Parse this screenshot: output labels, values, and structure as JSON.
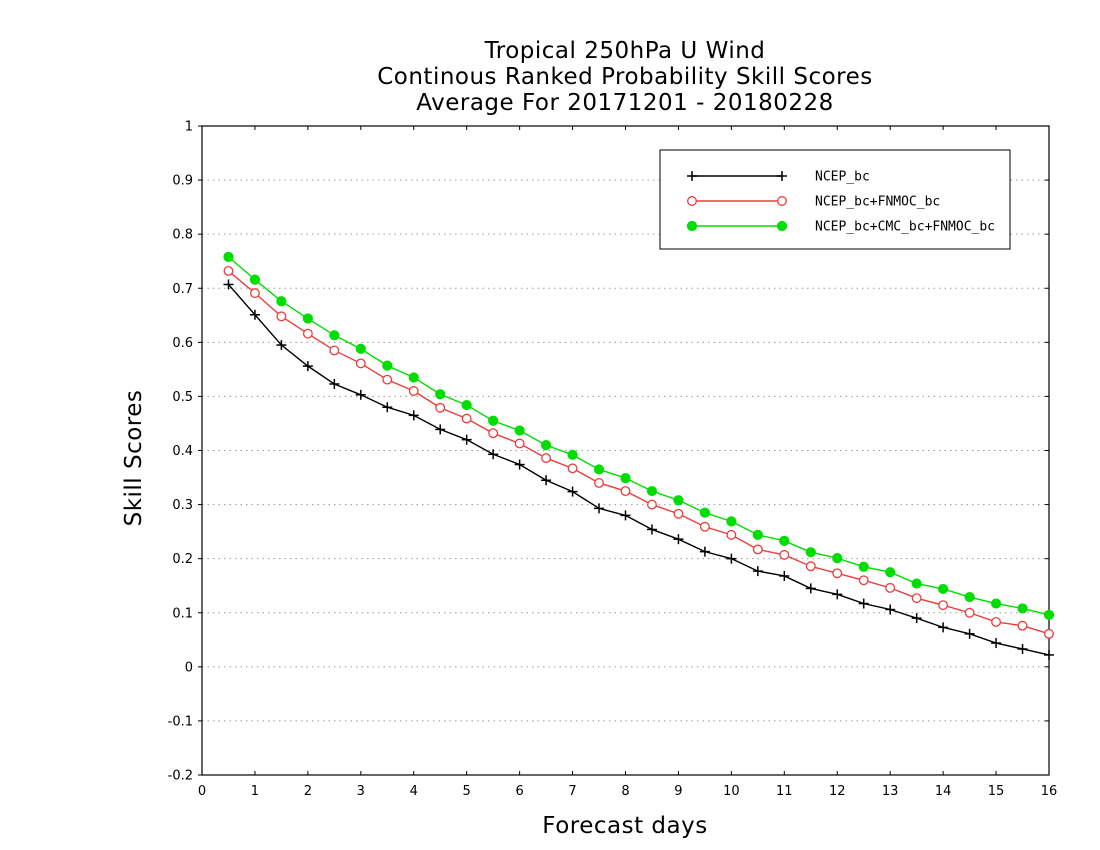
{
  "chart_data": {
    "type": "line",
    "title": [
      "Tropical 250hPa U Wind",
      "Continous Ranked Probability Skill Scores",
      "Average For 20171201 - 20180228"
    ],
    "xlabel": "Forecast days",
    "ylabel": "Skill Scores",
    "xlim": [
      0,
      16
    ],
    "ylim": [
      -0.2,
      1
    ],
    "xticks": [
      "0",
      "1",
      "2",
      "3",
      "4",
      "5",
      "6",
      "7",
      "8",
      "9",
      "10",
      "11",
      "12",
      "13",
      "14",
      "15",
      "16"
    ],
    "yticks": [
      "-0.2",
      "-0.1",
      "0",
      "0.1",
      "0.2",
      "0.3",
      "0.4",
      "0.5",
      "0.6",
      "0.7",
      "0.8",
      "0.9",
      "1"
    ],
    "grid": "horizontal dotted",
    "legend_position": "top-right",
    "x": [
      0.5,
      1,
      1.5,
      2,
      2.5,
      3,
      3.5,
      4,
      4.5,
      5,
      5.5,
      6,
      6.5,
      7,
      7.5,
      8,
      8.5,
      9,
      9.5,
      10,
      10.5,
      11,
      11.5,
      12,
      12.5,
      13,
      13.5,
      14,
      14.5,
      15,
      15.5,
      16
    ],
    "series": [
      {
        "name": "NCEP_bc",
        "color": "#000000",
        "marker": "plus",
        "values": [
          0.707,
          0.651,
          0.595,
          0.556,
          0.523,
          0.503,
          0.48,
          0.465,
          0.439,
          0.42,
          0.393,
          0.374,
          0.345,
          0.324,
          0.293,
          0.28,
          0.254,
          0.236,
          0.213,
          0.2,
          0.177,
          0.168,
          0.145,
          0.134,
          0.117,
          0.106,
          0.09,
          0.073,
          0.061,
          0.044,
          0.033,
          0.022
        ]
      },
      {
        "name": "NCEP_bc+FNMOC_bc",
        "color": "#ee3b3b",
        "marker": "open-circle",
        "values": [
          0.732,
          0.691,
          0.648,
          0.616,
          0.585,
          0.561,
          0.531,
          0.51,
          0.479,
          0.459,
          0.432,
          0.413,
          0.386,
          0.367,
          0.34,
          0.325,
          0.3,
          0.283,
          0.259,
          0.244,
          0.217,
          0.207,
          0.186,
          0.173,
          0.16,
          0.146,
          0.127,
          0.114,
          0.1,
          0.083,
          0.076,
          0.061
        ]
      },
      {
        "name": "NCEP_bc+CMC_bc+FNMOC_bc",
        "color": "#00dd00",
        "marker": "filled-circle",
        "values": [
          0.758,
          0.716,
          0.676,
          0.644,
          0.613,
          0.588,
          0.557,
          0.535,
          0.504,
          0.484,
          0.455,
          0.437,
          0.41,
          0.392,
          0.365,
          0.349,
          0.325,
          0.308,
          0.285,
          0.269,
          0.244,
          0.233,
          0.212,
          0.201,
          0.185,
          0.175,
          0.154,
          0.144,
          0.129,
          0.117,
          0.108,
          0.096
        ]
      }
    ]
  }
}
